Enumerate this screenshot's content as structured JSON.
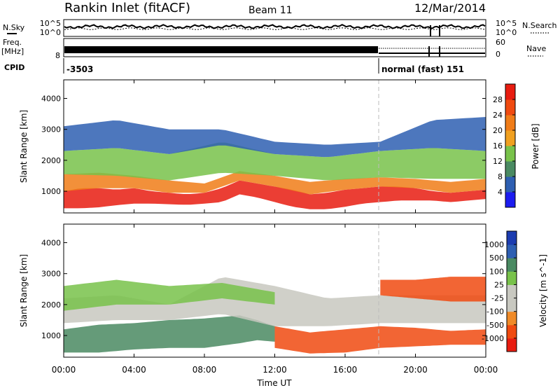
{
  "header": {
    "station": "Rankin Inlet (fitACF)",
    "beam": "Beam 11",
    "date": "12/Mar/2014"
  },
  "colors": {
    "power_scale": [
      "#1c1cf0",
      "#2e5fb2",
      "#4a8a62",
      "#78c24a",
      "#f0a020",
      "#f07c18",
      "#f04a10",
      "#e81c10"
    ],
    "velocity_scale": [
      "#e81c10",
      "#f04a10",
      "#f08a28",
      "#c8c8c0",
      "#c8c8c0",
      "#78c24a",
      "#4a8a62",
      "#2e5fb2",
      "#1c3cb0"
    ],
    "noise_trace": "#000000"
  },
  "panels": {
    "noise": {
      "left_label": "N.Sky",
      "right_label": "N.Search",
      "left_ticks": [
        "10^5",
        "10^0"
      ],
      "right_ticks": [
        "10^5",
        "10^0"
      ]
    },
    "freq": {
      "left_label_top": "Freq.",
      "left_label_bottom": "[MHz]",
      "left_tick": "8",
      "right_label": "Nave",
      "right_ticks": [
        "60",
        "0"
      ]
    },
    "cpid": {
      "label": "CPID",
      "segments": [
        {
          "value": "-3503"
        },
        {
          "value": "normal (fast)  151"
        }
      ]
    }
  },
  "chart_data": [
    {
      "type": "heatmap",
      "title": "",
      "xlabel": "Time UT",
      "ylabel": "Slant Range [km]",
      "xlim": [
        0,
        24
      ],
      "ylim": [
        300,
        4600
      ],
      "x_ticks": [
        "00:00",
        "04:00",
        "08:00",
        "12:00",
        "16:00",
        "20:00",
        "00:00"
      ],
      "y_ticks": [
        1000,
        2000,
        3000,
        4000
      ],
      "colorbar": {
        "label": "Power [dB]",
        "ticks": [
          4,
          8,
          12,
          16,
          20,
          24,
          28
        ],
        "range": [
          0,
          32
        ]
      },
      "layers": [
        {
          "t": [
            0,
            1,
            2,
            3,
            4,
            5,
            6,
            7,
            8,
            9,
            10,
            11,
            12,
            13,
            14,
            15,
            16,
            17,
            18,
            19,
            20,
            21,
            22,
            23,
            24
          ],
          "lo": [
            450,
            450,
            480,
            550,
            600,
            600,
            580,
            560,
            600,
            650,
            900,
            800,
            650,
            500,
            420,
            420,
            500,
            600,
            650,
            700,
            700,
            700,
            650,
            700,
            750
          ],
          "hi": [
            1000,
            1100,
            1100,
            1050,
            1100,
            1000,
            950,
            900,
            950,
            1100,
            1350,
            1250,
            1150,
            1050,
            900,
            950,
            1050,
            1100,
            1150,
            1150,
            1100,
            1000,
            950,
            1000,
            1050
          ],
          "value": 28
        },
        {
          "t": [
            0,
            2,
            4,
            6,
            8,
            10,
            12,
            14,
            16,
            18,
            20,
            22,
            24
          ],
          "lo": [
            1000,
            1100,
            1100,
            950,
            950,
            1350,
            1150,
            900,
            1050,
            1150,
            1100,
            950,
            1050
          ],
          "hi": [
            1550,
            1600,
            1500,
            1350,
            1250,
            1650,
            1500,
            1300,
            1400,
            1450,
            1400,
            1300,
            1400
          ],
          "value": 20
        },
        {
          "t": [
            0,
            3,
            6,
            9,
            12,
            15,
            18,
            21,
            24
          ],
          "lo": [
            1550,
            1500,
            1350,
            1600,
            1500,
            1350,
            1450,
            1400,
            1400
          ],
          "hi": [
            2300,
            2400,
            2200,
            2600,
            2200,
            2100,
            2300,
            2400,
            2300
          ],
          "value": 13
        },
        {
          "t": [
            0,
            3,
            6,
            9,
            12,
            15,
            18,
            21,
            24
          ],
          "lo": [
            2300,
            2400,
            2200,
            2500,
            2200,
            2100,
            2300,
            2400,
            2300
          ],
          "hi": [
            3100,
            3300,
            3000,
            3000,
            2600,
            2500,
            2600,
            3300,
            3400
          ],
          "value": 7
        }
      ]
    },
    {
      "type": "heatmap",
      "title": "",
      "xlabel": "Time UT",
      "ylabel": "Slant Range [km]",
      "xlim": [
        0,
        24
      ],
      "ylim": [
        300,
        4600
      ],
      "x_ticks": [
        "00:00",
        "04:00",
        "08:00",
        "12:00",
        "16:00",
        "20:00",
        "00:00"
      ],
      "y_ticks": [
        1000,
        2000,
        3000,
        4000
      ],
      "colorbar": {
        "label": "Velocity [m s^-1]",
        "ticks": [
          "1000",
          "500",
          "100",
          "25",
          "-25",
          "-100",
          "-500",
          "-1000"
        ]
      },
      "layers": [
        {
          "t": [
            0,
            2,
            4,
            6,
            8,
            10,
            11,
            12
          ],
          "lo": [
            450,
            450,
            550,
            600,
            600,
            750,
            850,
            800
          ],
          "hi": [
            1200,
            1350,
            1400,
            1500,
            1550,
            1650,
            1500,
            1300
          ],
          "value": 300
        },
        {
          "t": [
            12,
            14,
            16,
            18,
            20,
            22,
            24
          ],
          "lo": [
            600,
            420,
            450,
            600,
            650,
            700,
            700
          ],
          "hi": [
            1300,
            1100,
            1200,
            1300,
            1250,
            1150,
            1200
          ],
          "value": -300
        },
        {
          "t": [
            0,
            3,
            6,
            9,
            12,
            15,
            18,
            21,
            24
          ],
          "lo": [
            1400,
            1500,
            1500,
            1700,
            1300,
            1300,
            1400,
            1400,
            1400
          ],
          "hi": [
            2200,
            2300,
            2000,
            2900,
            2600,
            2200,
            2300,
            2300,
            2300
          ],
          "value": 0
        },
        {
          "t": [
            0,
            3,
            6,
            9,
            12
          ],
          "lo": [
            1800,
            2000,
            2000,
            2200,
            2000
          ],
          "hi": [
            2600,
            2800,
            2600,
            2700,
            2400
          ],
          "value": 60
        },
        {
          "t": [
            18,
            20,
            22,
            24
          ],
          "lo": [
            2300,
            2200,
            2100,
            2100
          ],
          "hi": [
            2800,
            2800,
            2900,
            2900
          ],
          "value": -150
        }
      ]
    }
  ]
}
